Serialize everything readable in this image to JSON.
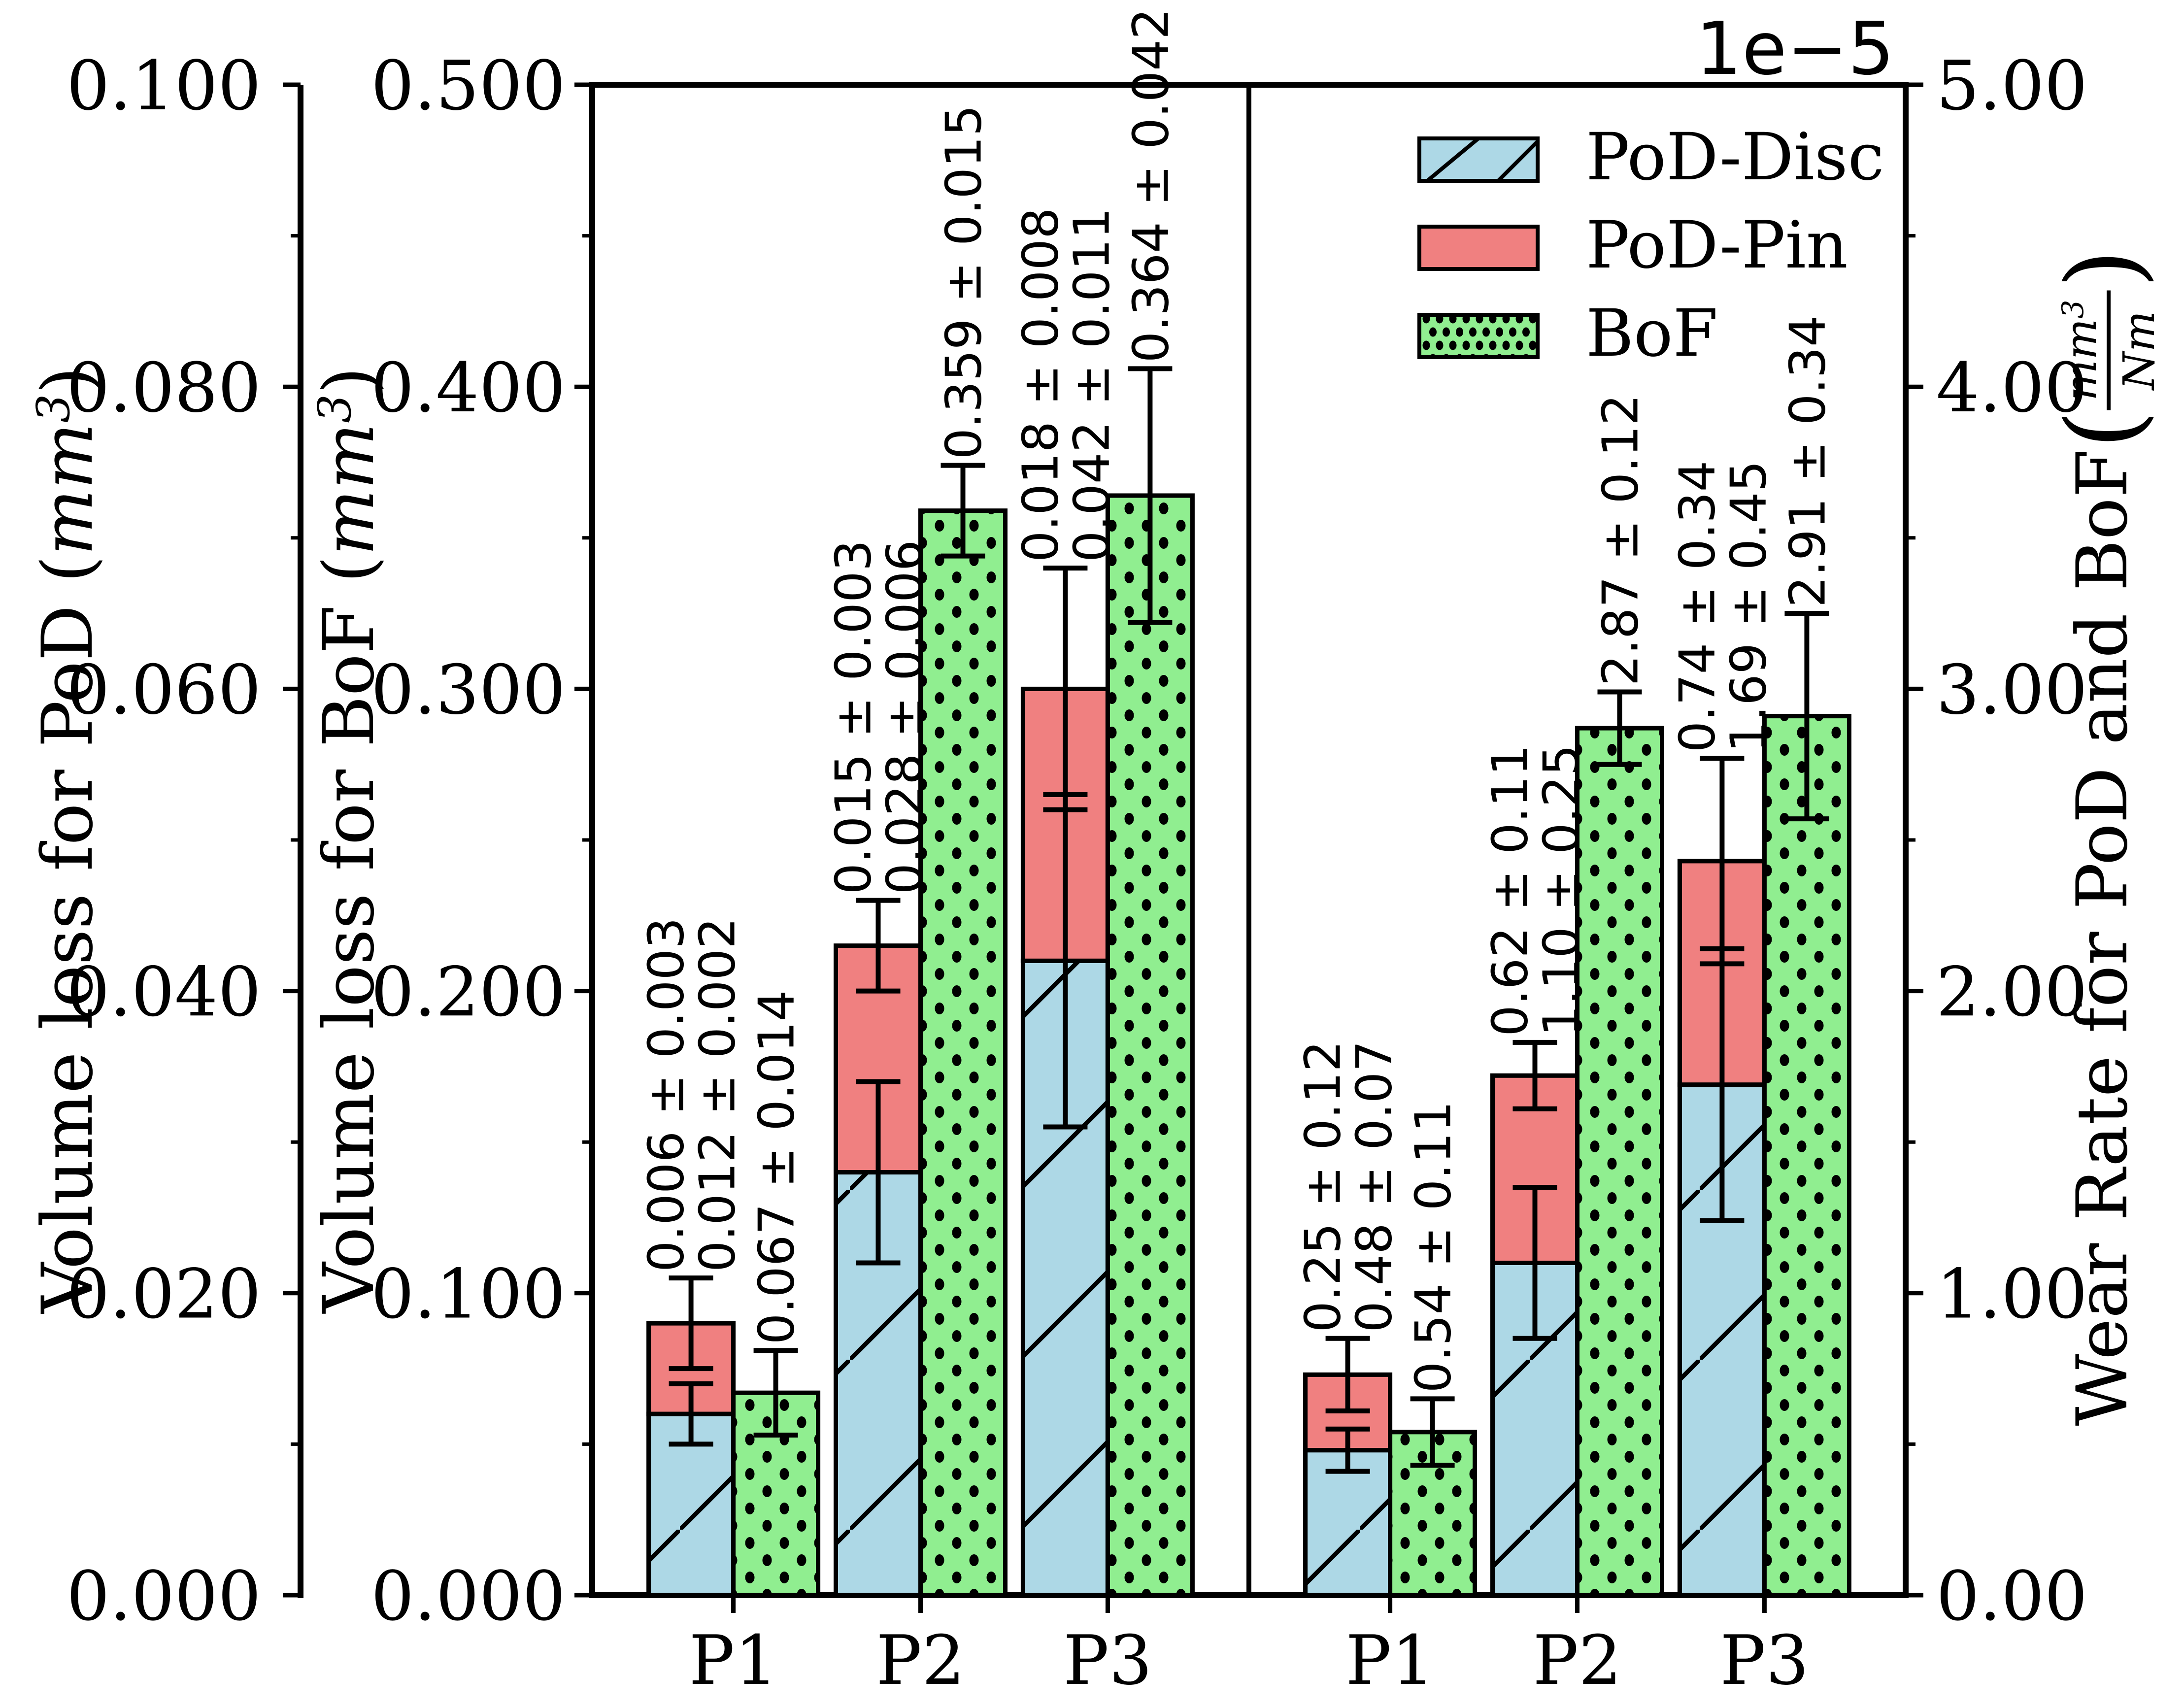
{
  "figure": {
    "offset_text": "1e−5",
    "background": "#ffffff"
  },
  "chart_data": {
    "type": "bar",
    "layout": "two side-by-side panels sharing one plot box, stacked PoD bars (Disc+Pin) beside hatched BoF bars, with error bars and rotated value annotations",
    "categories": [
      "P1",
      "P2",
      "P3"
    ],
    "legend": {
      "position": "upper area of right panel",
      "entries": [
        {
          "id": "pod_disc",
          "label": "PoD-Disc",
          "fill": "#ADD8E6",
          "hatch": "diagonal"
        },
        {
          "id": "pod_pin",
          "label": "PoD-Pin",
          "fill": "#F08080",
          "hatch": "none"
        },
        {
          "id": "bof",
          "label": "BoF",
          "fill": "#90EE90",
          "hatch": "dots"
        }
      ]
    },
    "colors": {
      "pod_disc": "#ADD8E6",
      "pod_pin": "#F08080",
      "bof": "#90EE90",
      "edge": "#000000",
      "background": "#ffffff"
    },
    "axes": {
      "pod": {
        "side": "far-left",
        "label_prefix": "Volume loss for PoD (",
        "label_unit": "mm",
        "label_sup": "3",
        "label_suffix": ")",
        "range": [
          0.0,
          0.1
        ],
        "tick_labels": [
          "0.000",
          "0.020",
          "0.040",
          "0.060",
          "0.080",
          "0.100"
        ],
        "minor_ticks_between_majors": 1,
        "grid": false
      },
      "bof": {
        "side": "left",
        "label_prefix": "Volume loss for BoF (",
        "label_unit": "mm",
        "label_sup": "3",
        "label_suffix": ")",
        "range": [
          0.0,
          0.5
        ],
        "tick_labels": [
          "0.000",
          "0.100",
          "0.200",
          "0.300",
          "0.400",
          "0.500"
        ],
        "minor_ticks_between_majors": 1,
        "grid": false
      },
      "wear": {
        "side": "right",
        "label_prefix": "Wear Rate for PoD and BoF (",
        "frac_num": "mm",
        "frac_num_sup": "3",
        "frac_den": "Nm",
        "label_suffix": ")",
        "range": [
          0.0,
          5.0
        ],
        "tick_labels": [
          "0.00",
          "1.00",
          "2.00",
          "3.00",
          "4.00",
          "5.00"
        ],
        "minor_ticks_between_majors": 1,
        "offset_text": "1e−5",
        "grid": false
      }
    },
    "panels": [
      {
        "name": "volume_loss",
        "stacked_bars_scale": "pod",
        "bof_bar_scale": "bof",
        "groups": [
          {
            "category": "P1",
            "disc": {
              "value": 0.012,
              "error": 0.002,
              "label": "0.012 ± 0.002"
            },
            "pin": {
              "value": 0.006,
              "error": 0.003,
              "label": "0.006 ± 0.003"
            },
            "bof": {
              "value": 0.067,
              "error": 0.014,
              "label": "0.067 ± 0.014"
            }
          },
          {
            "category": "P2",
            "disc": {
              "value": 0.028,
              "error": 0.006,
              "label": "0.028 ± 0.006"
            },
            "pin": {
              "value": 0.015,
              "error": 0.003,
              "label": "0.015 ± 0.003"
            },
            "bof": {
              "value": 0.359,
              "error": 0.015,
              "label": "0.359 ± 0.015"
            }
          },
          {
            "category": "P3",
            "disc": {
              "value": 0.042,
              "error": 0.011,
              "label": "0.042 ± 0.011"
            },
            "pin": {
              "value": 0.018,
              "error": 0.008,
              "label": "0.018 ± 0.008"
            },
            "bof": {
              "value": 0.364,
              "error": 0.042,
              "label": "0.364 ± 0.042"
            }
          }
        ]
      },
      {
        "name": "wear_rate",
        "stacked_bars_scale": "wear",
        "bof_bar_scale": "wear",
        "groups": [
          {
            "category": "P1",
            "disc": {
              "value": 0.48,
              "error": 0.07,
              "label": "0.48 ± 0.07"
            },
            "pin": {
              "value": 0.25,
              "error": 0.12,
              "label": "0.25 ± 0.12"
            },
            "bof": {
              "value": 0.54,
              "error": 0.11,
              "label": "0.54 ± 0.11"
            }
          },
          {
            "category": "P2",
            "disc": {
              "value": 1.1,
              "error": 0.25,
              "label": "1.10 ± 0.25"
            },
            "pin": {
              "value": 0.62,
              "error": 0.11,
              "label": "0.62 ± 0.11"
            },
            "bof": {
              "value": 2.87,
              "error": 0.12,
              "label": "2.87 ± 0.12"
            }
          },
          {
            "category": "P3",
            "disc": {
              "value": 1.69,
              "error": 0.45,
              "label": "1.69 ± 0.45"
            },
            "pin": {
              "value": 0.74,
              "error": 0.34,
              "label": "0.74 ± 0.34"
            },
            "bof": {
              "value": 2.91,
              "error": 0.34,
              "label": "2.91 ± 0.34"
            }
          }
        ]
      }
    ]
  }
}
